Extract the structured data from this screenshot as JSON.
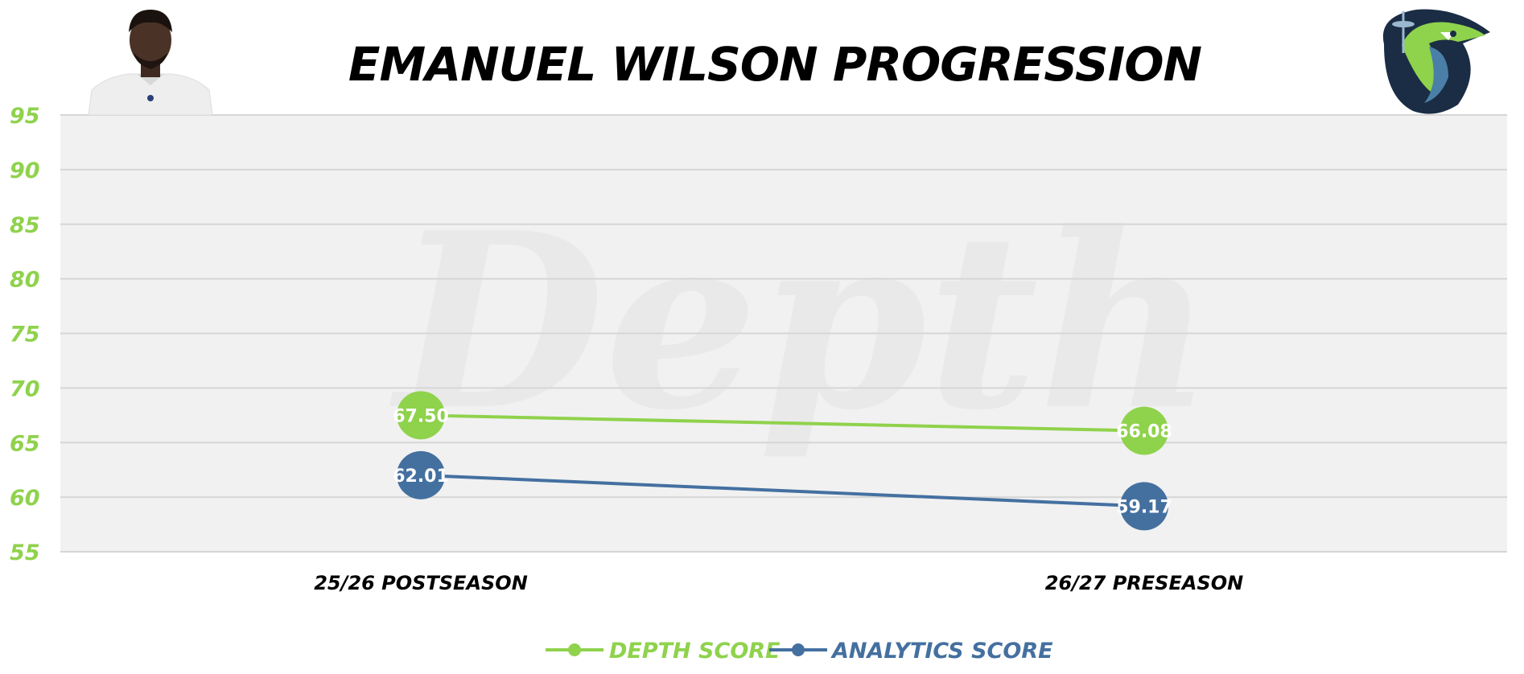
{
  "colors": {
    "depth": "#8fd24c",
    "analytics": "#4470a0",
    "plot_bg": "#f1f1f1",
    "grid": "#d6d6d6",
    "axis_text": "#8fd24c",
    "title": "#000000"
  },
  "images": {
    "player_photo": "player-headshot",
    "team_logo": "seahawk-logo",
    "watermark": "Depth"
  },
  "chart_data": {
    "type": "line",
    "title": "EMANUEL WILSON PROGRESSION",
    "xlabel": "",
    "ylabel": "",
    "categories": [
      "25/26 POSTSEASON",
      "26/27 PRESEASON"
    ],
    "ylim": [
      55,
      95
    ],
    "yticks": [
      55,
      60,
      65,
      70,
      75,
      80,
      85,
      90,
      95
    ],
    "grid": true,
    "legend_position": "bottom-center",
    "series": [
      {
        "name": "DEPTH SCORE",
        "values": [
          67.5,
          66.08
        ],
        "labels": [
          "67.50",
          "66.08"
        ],
        "color": "#8fd24c"
      },
      {
        "name": "ANALYTICS SCORE",
        "values": [
          62.01,
          59.17
        ],
        "labels": [
          "62.01",
          "59.17"
        ],
        "color": "#4470a0"
      }
    ]
  }
}
